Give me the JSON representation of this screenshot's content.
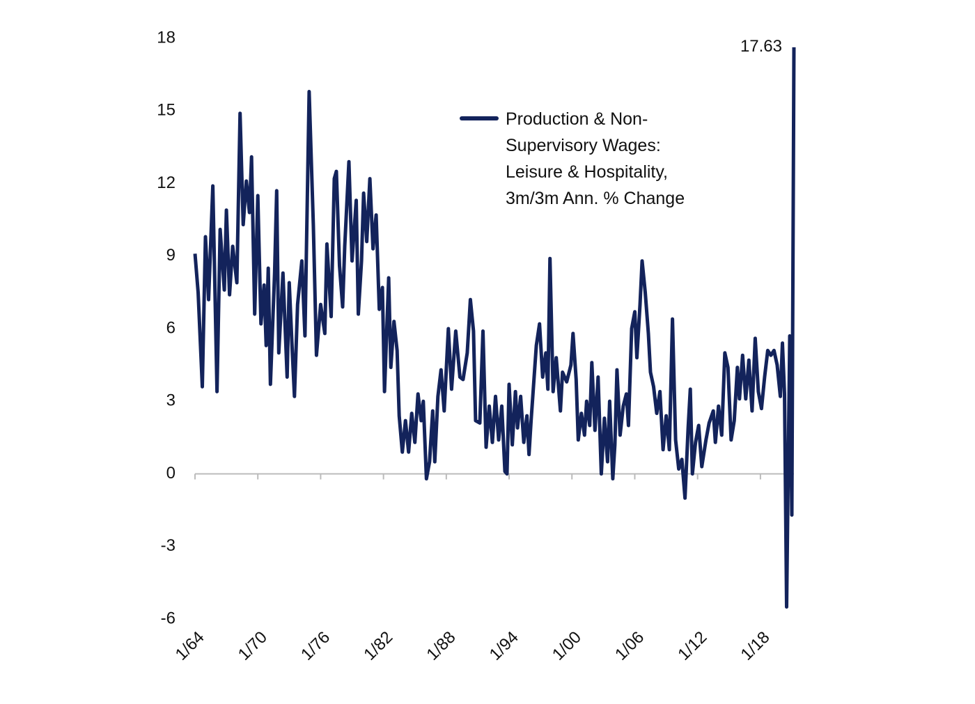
{
  "chart_data": {
    "type": "line",
    "x": [
      1964.0,
      1964.3,
      1964.7,
      1965.0,
      1965.3,
      1965.7,
      1966.1,
      1966.4,
      1966.8,
      1967.0,
      1967.3,
      1967.6,
      1968.0,
      1968.3,
      1968.6,
      1968.9,
      1969.2,
      1969.4,
      1969.7,
      1970.0,
      1970.3,
      1970.6,
      1970.8,
      1971.0,
      1971.2,
      1971.6,
      1971.8,
      1972.0,
      1972.4,
      1972.8,
      1973.0,
      1973.3,
      1973.5,
      1973.8,
      1974.2,
      1974.5,
      1974.9,
      1975.3,
      1975.6,
      1976.0,
      1976.4,
      1976.6,
      1977.0,
      1977.3,
      1977.5,
      1977.8,
      1978.1,
      1978.3,
      1978.7,
      1979.0,
      1979.4,
      1979.6,
      1979.9,
      1980.1,
      1980.4,
      1980.7,
      1981.0,
      1981.3,
      1981.6,
      1981.9,
      1982.1,
      1982.5,
      1982.7,
      1983.0,
      1983.3,
      1983.5,
      1983.8,
      1984.1,
      1984.4,
      1984.7,
      1985.0,
      1985.3,
      1985.6,
      1985.8,
      1986.1,
      1986.4,
      1986.7,
      1986.9,
      1987.2,
      1987.5,
      1987.8,
      1988.2,
      1988.5,
      1988.9,
      1989.3,
      1989.6,
      1990.0,
      1990.3,
      1990.6,
      1990.8,
      1991.2,
      1991.5,
      1991.8,
      1992.1,
      1992.4,
      1992.7,
      1993.0,
      1993.3,
      1993.6,
      1993.8,
      1994.0,
      1994.3,
      1994.6,
      1994.8,
      1995.1,
      1995.4,
      1995.7,
      1995.9,
      1996.1,
      1996.6,
      1996.9,
      1997.2,
      1997.5,
      1997.7,
      1997.9,
      1998.2,
      1998.5,
      1998.9,
      1999.1,
      1999.5,
      1999.9,
      2000.1,
      2000.4,
      2000.6,
      2000.9,
      2001.2,
      2001.4,
      2001.7,
      2001.9,
      2002.2,
      2002.5,
      2002.8,
      2003.1,
      2003.4,
      2003.6,
      2003.9,
      2004.1,
      2004.3,
      2004.6,
      2004.9,
      2005.2,
      2005.4,
      2005.7,
      2006.0,
      2006.2,
      2006.5,
      2006.7,
      2007.0,
      2007.3,
      2007.5,
      2007.8,
      2008.1,
      2008.4,
      2008.7,
      2009.0,
      2009.3,
      2009.6,
      2009.9,
      2010.2,
      2010.5,
      2010.8,
      2011.1,
      2011.3,
      2011.5,
      2011.8,
      2012.1,
      2012.4,
      2012.8,
      2013.1,
      2013.5,
      2013.7,
      2014.0,
      2014.3,
      2014.6,
      2014.9,
      2015.2,
      2015.5,
      2015.8,
      2016.0,
      2016.3,
      2016.6,
      2016.9,
      2017.2,
      2017.5,
      2017.8,
      2018.1,
      2018.4,
      2018.7,
      2019.0,
      2019.3,
      2019.6,
      2019.9,
      2020.1,
      2020.3,
      2020.5,
      2020.8,
      2021.0,
      2021.2
    ],
    "series": [
      {
        "name": "Production & Non-Supervisory Wages: Leisure & Hospitality, 3m/3m Ann. % Change",
        "color": "#13235b",
        "values": [
          9.1,
          7.5,
          3.6,
          9.8,
          7.2,
          11.9,
          3.4,
          10.1,
          7.6,
          10.9,
          7.4,
          9.4,
          7.9,
          14.9,
          10.3,
          12.1,
          10.8,
          13.1,
          6.6,
          11.5,
          6.2,
          7.8,
          5.3,
          8.5,
          3.7,
          8.3,
          11.7,
          5.0,
          8.3,
          4.0,
          7.9,
          5.0,
          3.2,
          7.0,
          8.8,
          5.7,
          15.8,
          10.3,
          4.9,
          7.0,
          5.8,
          9.5,
          6.5,
          12.2,
          12.5,
          8.6,
          6.9,
          9.4,
          12.9,
          8.8,
          11.3,
          6.6,
          8.8,
          11.6,
          9.6,
          12.2,
          9.3,
          10.7,
          6.8,
          7.7,
          3.4,
          8.1,
          4.4,
          6.3,
          5.1,
          2.4,
          0.9,
          2.2,
          0.9,
          2.5,
          1.3,
          3.3,
          2.2,
          3.0,
          -0.2,
          0.5,
          2.6,
          0.5,
          3.2,
          4.3,
          2.6,
          6.0,
          3.5,
          5.9,
          4.0,
          3.9,
          5.0,
          7.2,
          5.9,
          2.2,
          2.1,
          5.9,
          1.1,
          2.8,
          1.3,
          3.2,
          1.4,
          2.8,
          0.1,
          0.0,
          3.7,
          1.2,
          3.4,
          1.9,
          3.2,
          1.3,
          2.4,
          0.8,
          2.2,
          5.3,
          6.2,
          4.0,
          5.0,
          3.5,
          8.9,
          3.4,
          4.8,
          2.6,
          4.2,
          3.8,
          4.5,
          5.8,
          3.9,
          1.4,
          2.5,
          1.6,
          3.0,
          2.0,
          4.6,
          1.8,
          4.0,
          0.0,
          2.3,
          0.5,
          3.0,
          -0.2,
          1.2,
          4.3,
          1.6,
          2.8,
          3.3,
          2.0,
          6.0,
          6.7,
          4.8,
          7.0,
          8.8,
          7.5,
          5.8,
          4.2,
          3.6,
          2.5,
          3.4,
          1.0,
          2.4,
          1.0,
          6.4,
          1.4,
          0.2,
          0.6,
          -1.0,
          1.9,
          3.5,
          0.0,
          1.3,
          2.0,
          0.3,
          1.4,
          2.1,
          2.6,
          1.3,
          2.8,
          1.6,
          5.0,
          4.4,
          1.4,
          2.2,
          4.4,
          3.1,
          4.9,
          3.1,
          4.7,
          2.6,
          5.6,
          3.4,
          2.7,
          4.0,
          5.1,
          4.9,
          5.1,
          4.5,
          3.2,
          5.4,
          3.3,
          -5.5,
          5.7,
          -1.7,
          17.63
        ]
      }
    ],
    "xlim": [
      1964,
      2021.2
    ],
    "xticks": [
      {
        "value": 1964,
        "label": "1/64"
      },
      {
        "value": 1970,
        "label": "1/70"
      },
      {
        "value": 1976,
        "label": "1/76"
      },
      {
        "value": 1982,
        "label": "1/82"
      },
      {
        "value": 1988,
        "label": "1/88"
      },
      {
        "value": 1994,
        "label": "1/94"
      },
      {
        "value": 2000,
        "label": "1/00"
      },
      {
        "value": 2006,
        "label": "1/06"
      },
      {
        "value": 2012,
        "label": "1/12"
      },
      {
        "value": 2018,
        "label": "1/18"
      }
    ],
    "ylim": [
      -6,
      18
    ],
    "yticks": [
      18,
      15,
      12,
      9,
      6,
      3,
      0,
      -3,
      -6
    ],
    "legend": "top-right"
  }
}
